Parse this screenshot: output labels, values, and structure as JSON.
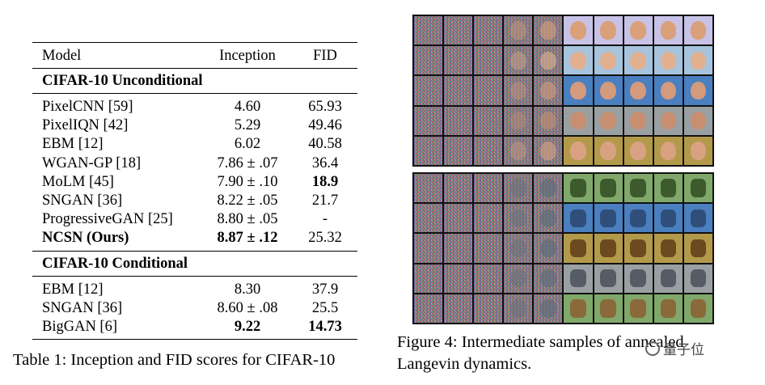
{
  "table": {
    "columns": [
      "Model",
      "Inception",
      "FID"
    ],
    "sections": [
      {
        "title": "CIFAR-10 Unconditional",
        "rows": [
          {
            "model": "PixelCNN [59]",
            "inception": "4.60",
            "fid": "65.93",
            "bold": false
          },
          {
            "model": "PixelIQN [42]",
            "inception": "5.29",
            "fid": "49.46",
            "bold": false
          },
          {
            "model": "EBM [12]",
            "inception": "6.02",
            "fid": "40.58",
            "bold": false
          },
          {
            "model": "WGAN-GP [18]",
            "inception": "7.86 ± .07",
            "fid": "36.4",
            "bold": false
          },
          {
            "model": "MoLM [45]",
            "inception": "7.90 ± .10",
            "fid": "18.9",
            "bold": false,
            "fid_bold": true
          },
          {
            "model": "SNGAN [36]",
            "inception": "8.22 ± .05",
            "fid": "21.7",
            "bold": false
          },
          {
            "model": "ProgressiveGAN [25]",
            "inception": "8.80 ± .05",
            "fid": "-",
            "bold": false
          },
          {
            "model": "NCSN (Ours)",
            "inception": "8.87 ± .12",
            "fid": "25.32",
            "bold": true
          }
        ]
      },
      {
        "title": "CIFAR-10 Conditional",
        "rows": [
          {
            "model": "EBM [12]",
            "inception": "8.30",
            "fid": "37.9",
            "bold": false
          },
          {
            "model": "SNGAN [36]",
            "inception": "8.60 ± .08",
            "fid": "25.5",
            "bold": false
          },
          {
            "model": "BigGAN [6]",
            "inception": "9.22",
            "fid": "14.73",
            "bold": false,
            "incep_bold": true,
            "fid_bold": true
          }
        ]
      }
    ],
    "caption": "Table 1: Inception and FID scores for CIFAR-10"
  },
  "figure": {
    "caption_line1": "Figure 4: Intermediate samples of annealed",
    "caption_line2": "Langevin dynamics."
  },
  "watermark": "量子位"
}
